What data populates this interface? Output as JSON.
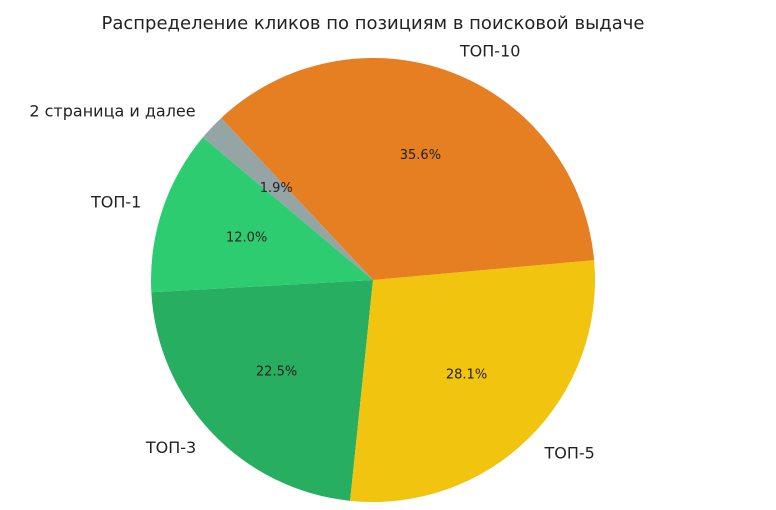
{
  "chart_data": {
    "type": "pie",
    "title": "Распределение кликов по позициям в поисковой выдаче",
    "categories": [
      "ТОП-1",
      "ТОП-3",
      "ТОП-5",
      "ТОП-10",
      "2 страница и далее"
    ],
    "values": [
      12.0,
      22.5,
      28.1,
      35.6,
      1.9
    ],
    "value_labels": [
      "12.0%",
      "22.5%",
      "28.1%",
      "35.6%",
      "1.9%"
    ],
    "colors": [
      "#2ecc71",
      "#27ae60",
      "#f1c40f",
      "#e67e22",
      "#95a5a6"
    ]
  }
}
